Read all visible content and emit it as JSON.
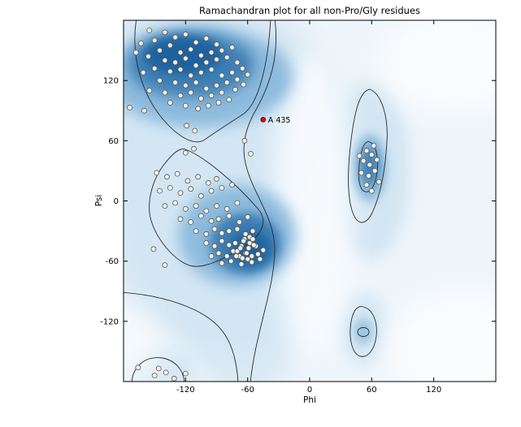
{
  "chart_data": {
    "type": "scatter",
    "title": "Ramachandran plot for all non-Pro/Gly residues",
    "xlabel": "Phi",
    "ylabel": "Psi",
    "xlim": [
      -180,
      180
    ],
    "ylim": [
      -180,
      180
    ],
    "xticks": [
      "-120",
      "-60",
      "0",
      "60",
      "120"
    ],
    "xtick_values": [
      -120,
      -60,
      0,
      60,
      120
    ],
    "yticks": [
      "120",
      "60",
      "0",
      "-60",
      "-120"
    ],
    "ytick_values": [
      120,
      60,
      0,
      -60,
      -120
    ],
    "grid": false,
    "legend": null,
    "highlight": {
      "label": "A 435",
      "phi": -45,
      "psi": 81,
      "color": "#cc1111"
    },
    "colors": {
      "plot_bg": "#eef5fa",
      "density_light": "#d3e6f3",
      "density_mid": "#8cbbdd",
      "density_dark": "#3c7fb5",
      "density_core": "#1f629e",
      "contour": "#2b2b2b",
      "point_fill": "#f5f1e6",
      "point_stroke": "#5a5a5a"
    },
    "points": [
      [
        -155,
        170
      ],
      [
        -140,
        168
      ],
      [
        -150,
        160
      ],
      [
        -163,
        157
      ],
      [
        -130,
        163
      ],
      [
        -120,
        166
      ],
      [
        -135,
        155
      ],
      [
        -110,
        158
      ],
      [
        -100,
        162
      ],
      [
        -90,
        156
      ],
      [
        -145,
        150
      ],
      [
        -156,
        144
      ],
      [
        -125,
        148
      ],
      [
        -115,
        151
      ],
      [
        -105,
        145
      ],
      [
        -95,
        148
      ],
      [
        -85,
        150
      ],
      [
        -75,
        153
      ],
      [
        -140,
        140
      ],
      [
        -130,
        138
      ],
      [
        -120,
        142
      ],
      [
        -110,
        135
      ],
      [
        -100,
        138
      ],
      [
        -90,
        141
      ],
      [
        -80,
        143
      ],
      [
        -70,
        138
      ],
      [
        -150,
        132
      ],
      [
        -161,
        128
      ],
      [
        -135,
        129
      ],
      [
        -125,
        131
      ],
      [
        -115,
        125
      ],
      [
        -105,
        128
      ],
      [
        -95,
        131
      ],
      [
        -85,
        125
      ],
      [
        -75,
        128
      ],
      [
        -65,
        132
      ],
      [
        -145,
        120
      ],
      [
        -130,
        118
      ],
      [
        -120,
        115
      ],
      [
        -110,
        118
      ],
      [
        -100,
        112
      ],
      [
        -90,
        115
      ],
      [
        -80,
        118
      ],
      [
        -70,
        121
      ],
      [
        -60,
        126
      ],
      [
        -155,
        110
      ],
      [
        -140,
        108
      ],
      [
        -125,
        105
      ],
      [
        -115,
        108
      ],
      [
        -105,
        102
      ],
      [
        -95,
        105
      ],
      [
        -85,
        108
      ],
      [
        -72,
        111
      ],
      [
        -64,
        116
      ],
      [
        -135,
        98
      ],
      [
        -120,
        95
      ],
      [
        -108,
        92
      ],
      [
        -98,
        95
      ],
      [
        -88,
        98
      ],
      [
        -78,
        101
      ],
      [
        -160,
        90
      ],
      [
        -168,
        148
      ],
      [
        -174,
        93
      ],
      [
        -119,
        75
      ],
      [
        -111,
        70
      ],
      [
        -120,
        48
      ],
      [
        -112,
        52
      ],
      [
        -63,
        60
      ],
      [
        -57,
        47
      ],
      [
        -148,
        28
      ],
      [
        -138,
        24
      ],
      [
        -128,
        27
      ],
      [
        -118,
        20
      ],
      [
        -108,
        24
      ],
      [
        -98,
        18
      ],
      [
        -90,
        22
      ],
      [
        -145,
        10
      ],
      [
        -135,
        13
      ],
      [
        -125,
        8
      ],
      [
        -115,
        12
      ],
      [
        -105,
        5
      ],
      [
        -95,
        10
      ],
      [
        -85,
        13
      ],
      [
        -75,
        16
      ],
      [
        -140,
        -5
      ],
      [
        -130,
        -2
      ],
      [
        -120,
        -8
      ],
      [
        -110,
        -5
      ],
      [
        -100,
        -10
      ],
      [
        -90,
        -5
      ],
      [
        -80,
        -8
      ],
      [
        -70,
        -2
      ],
      [
        -125,
        -18
      ],
      [
        -115,
        -21
      ],
      [
        -105,
        -15
      ],
      [
        -95,
        -20
      ],
      [
        -88,
        -18
      ],
      [
        -78,
        -15
      ],
      [
        -68,
        -21
      ],
      [
        -60,
        -16
      ],
      [
        -110,
        -30
      ],
      [
        -100,
        -33
      ],
      [
        -92,
        -28
      ],
      [
        -85,
        -32
      ],
      [
        -78,
        -30
      ],
      [
        -70,
        -28
      ],
      [
        -62,
        -33
      ],
      [
        -55,
        -30
      ],
      [
        -100,
        -42
      ],
      [
        -92,
        -45
      ],
      [
        -85,
        -40
      ],
      [
        -78,
        -44
      ],
      [
        -72,
        -42
      ],
      [
        -66,
        -45
      ],
      [
        -58,
        -42
      ],
      [
        -52,
        -45
      ],
      [
        -95,
        -55
      ],
      [
        -88,
        -52
      ],
      [
        -80,
        -55
      ],
      [
        -74,
        -50
      ],
      [
        -68,
        -55
      ],
      [
        -62,
        -52
      ],
      [
        -56,
        -55
      ],
      [
        -50,
        -53
      ],
      [
        -45,
        -49
      ],
      [
        -85,
        -62
      ],
      [
        -76,
        -60
      ],
      [
        -66,
        -63
      ],
      [
        -56,
        -61
      ],
      [
        -48,
        -58
      ],
      [
        -140,
        -64
      ],
      [
        -151,
        -48
      ],
      [
        -63,
        -38
      ],
      [
        -59,
        -47
      ],
      [
        -70,
        -50
      ],
      [
        -64,
        -40
      ],
      [
        -60,
        -58
      ],
      [
        -54,
        -44
      ],
      [
        -58,
        -36
      ],
      [
        -67,
        -47
      ],
      [
        -61,
        -52
      ],
      [
        -55,
        -38
      ],
      [
        -71,
        -55
      ],
      [
        -65,
        -57
      ],
      [
        55,
        50
      ],
      [
        60,
        46
      ],
      [
        52,
        40
      ],
      [
        58,
        36
      ],
      [
        65,
        41
      ],
      [
        50,
        28
      ],
      [
        57,
        25
      ],
      [
        63,
        30
      ],
      [
        55,
        16
      ],
      [
        60,
        10
      ],
      [
        67,
        19
      ],
      [
        48,
        45
      ],
      [
        62,
        55
      ],
      [
        -150,
        -174
      ],
      [
        -139,
        -171
      ],
      [
        -146,
        -167
      ],
      [
        -131,
        -177
      ],
      [
        -166,
        -166
      ],
      [
        -120,
        -172
      ]
    ]
  }
}
